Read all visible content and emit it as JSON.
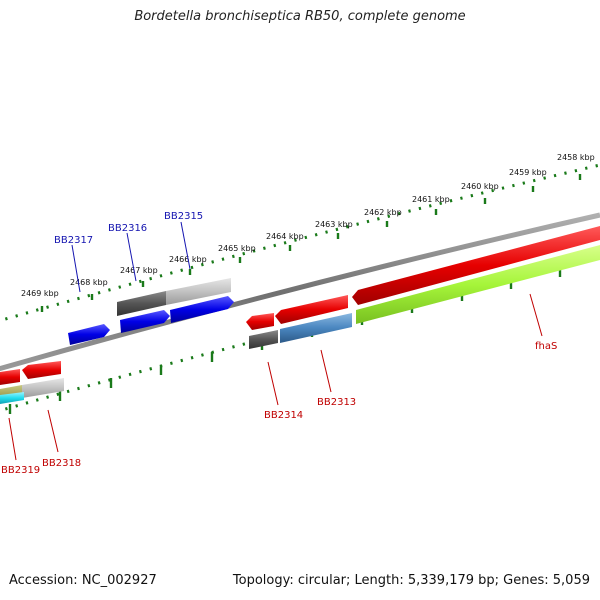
{
  "title": "Bordetella bronchiseptica RB50, complete genome",
  "footer": {
    "accession": "Accession: NC_002927",
    "summary": "Topology: circular; Length: 5,339,179 bp; Genes: 5,059"
  },
  "scale_labels": [
    "2469 kbp",
    "2468 kbp",
    "2467 kbp",
    "2466 kbp",
    "2465 kbp",
    "2464 kbp",
    "2463 kbp",
    "2462 kbp",
    "2461 kbp",
    "2460 kbp",
    "2459 kbp",
    "2458 kbp"
  ],
  "gene_labels": {
    "top": [
      "BB2317",
      "BB2316",
      "BB2315"
    ],
    "bottom": [
      "BB2319",
      "BB2318",
      "BB2314",
      "BB2313",
      "fhaS"
    ]
  },
  "colors": {
    "red": "#e60000",
    "blue": "#0000e0",
    "gray_dark": "#555555",
    "gray_light": "#c0c0c0",
    "steel_blue": "#4a86c0",
    "lime": "#a6f53a",
    "cyan": "#22ddee",
    "tick_green": "#1a7a1a",
    "backbone": "#7a7a7a"
  }
}
